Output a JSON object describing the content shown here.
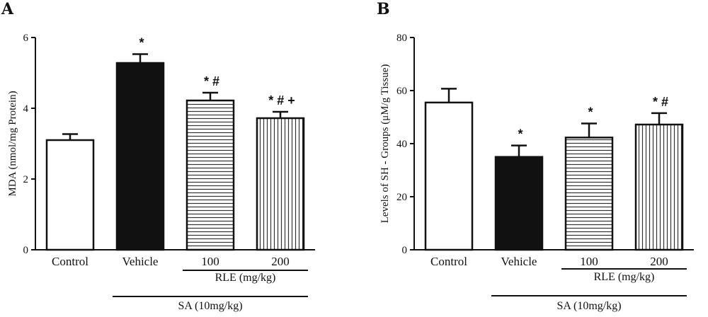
{
  "chart_data": [
    {
      "type": "bar",
      "panel": "A",
      "ylabel": "MDA (nmol/mg Protein)",
      "ylim": [
        0,
        6
      ],
      "yticks": [
        0,
        2,
        4,
        6
      ],
      "categories": [
        "Control",
        "Vehicle",
        "100",
        "200"
      ],
      "values": [
        3.1,
        5.28,
        4.22,
        3.72
      ],
      "errors": [
        0.17,
        0.25,
        0.22,
        0.18
      ],
      "annotations": [
        "",
        "*",
        "* #",
        "* # +"
      ],
      "fills": [
        "white",
        "black",
        "hstripe",
        "vstripe"
      ],
      "groups": [
        {
          "label": "RLE (mg/kg)",
          "from": 2,
          "to": 3
        },
        {
          "label": "SA (10mg/kg)",
          "from": 1,
          "to": 3
        }
      ]
    },
    {
      "type": "bar",
      "panel": "B",
      "ylabel": "Levels of SH - Groups (μM/g Tissue)",
      "ylim": [
        0,
        80
      ],
      "yticks": [
        0,
        20,
        40,
        60,
        80
      ],
      "categories": [
        "Control",
        "Vehicle",
        "100",
        "200"
      ],
      "values": [
        55.5,
        35,
        42.3,
        47.2
      ],
      "errors": [
        5.2,
        4.3,
        5.3,
        4.3
      ],
      "annotations": [
        "",
        "*",
        "*",
        "* #"
      ],
      "fills": [
        "white",
        "black",
        "hstripe",
        "vstripe"
      ],
      "groups": [
        {
          "label": "RLE (mg/kg)",
          "from": 2,
          "to": 3
        },
        {
          "label": "SA (10mg/kg)",
          "from": 1,
          "to": 3
        }
      ]
    }
  ]
}
